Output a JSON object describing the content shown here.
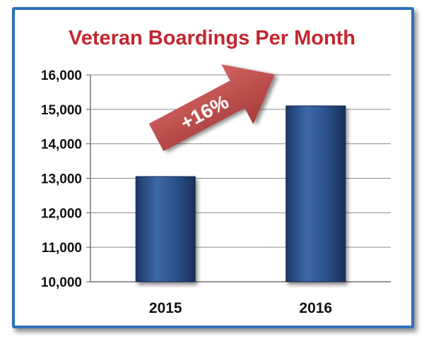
{
  "chart_data": {
    "type": "bar",
    "title": "Veteran Boardings Per Month",
    "categories": [
      "2015",
      "2016"
    ],
    "values": [
      13050,
      15100
    ],
    "ylim": [
      10000,
      16000
    ],
    "yticks": [
      10000,
      11000,
      12000,
      13000,
      14000,
      15000,
      16000
    ],
    "ytick_labels": [
      "10,000",
      "11,000",
      "12,000",
      "13,000",
      "14,000",
      "15,000",
      "16,000"
    ],
    "grid": true,
    "xlabel": "",
    "ylabel": "",
    "annotation": "+16%"
  },
  "colors": {
    "title": "#c3272f",
    "bar": "#2a4f87",
    "bar_light": "#3d68a8",
    "bar_dark": "#1b3766",
    "arrow": "#c0504d",
    "frame": "#2f6fbd",
    "grid": "#8c8c8c"
  }
}
